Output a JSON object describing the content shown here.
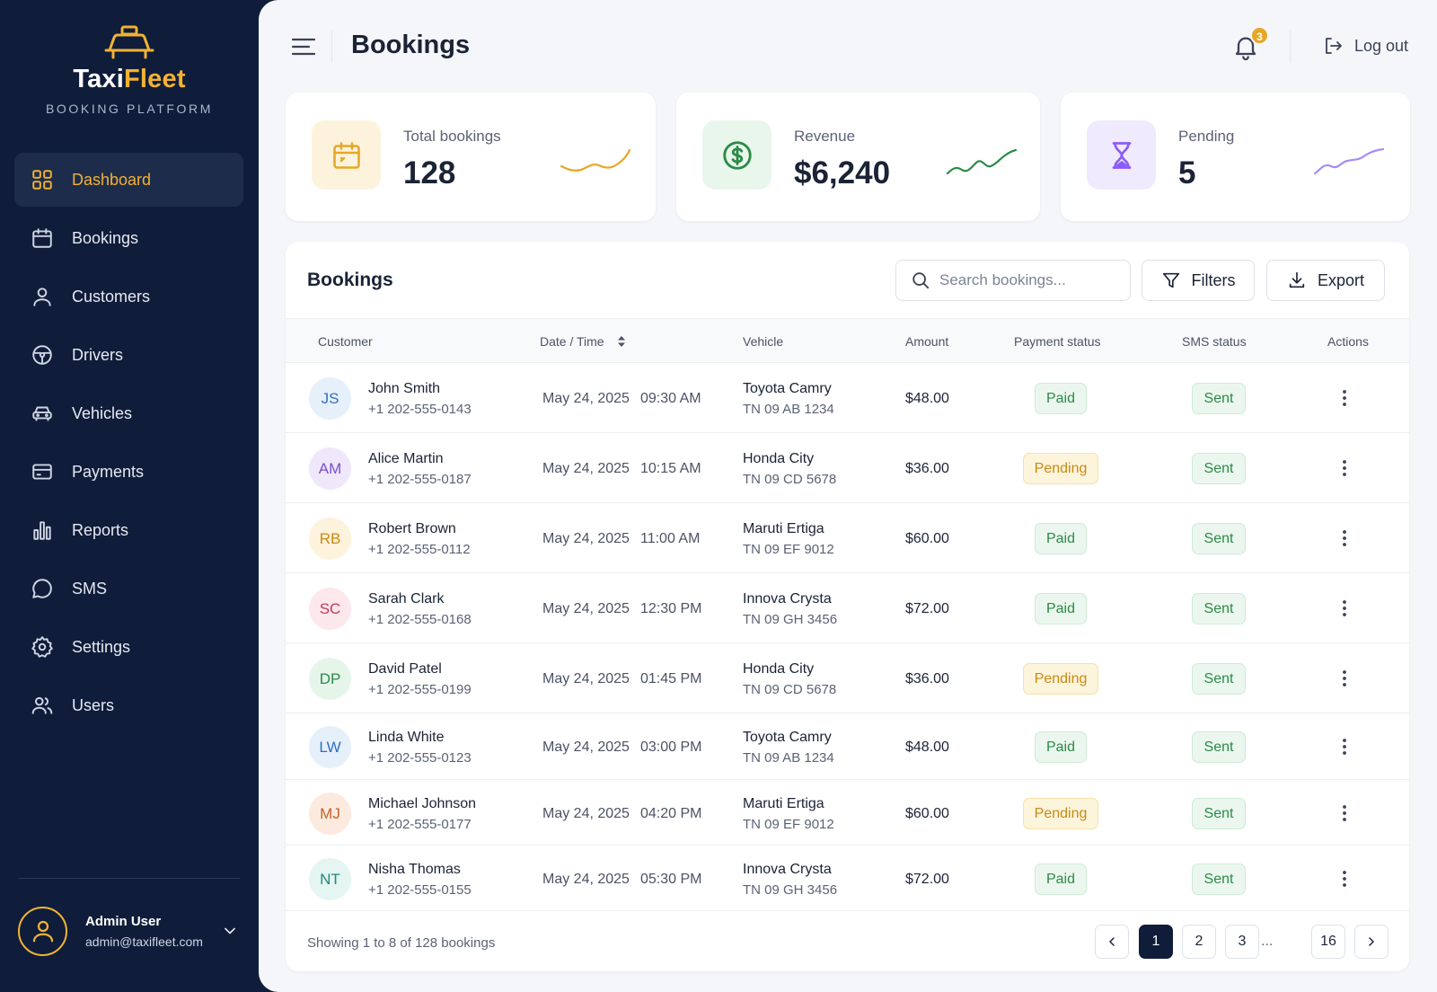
{
  "sidebar": {
    "brand_part1": "Taxi",
    "brand_part2": "Fleet",
    "tagline": "BOOKING PLATFORM",
    "items": [
      {
        "label": "Dashboard",
        "icon": "grid-icon",
        "active": true
      },
      {
        "label": "Bookings",
        "icon": "calendar-icon"
      },
      {
        "label": "Customers",
        "icon": "person-icon"
      },
      {
        "label": "Drivers",
        "icon": "steering-wheel-icon"
      },
      {
        "label": "Vehicles",
        "icon": "car-icon"
      },
      {
        "label": "Payments",
        "icon": "credit-card-icon"
      },
      {
        "label": "Reports",
        "icon": "bar-chart-icon"
      },
      {
        "label": "SMS",
        "icon": "chat-bubble-icon"
      },
      {
        "label": "Settings",
        "icon": "gear-icon"
      },
      {
        "label": "Users",
        "icon": "users-icon"
      }
    ],
    "user": {
      "name": "Admin User",
      "email": "admin@taxifleet.com"
    }
  },
  "header": {
    "title": "Bookings",
    "notifications_count": "3",
    "logout_label": "Log out"
  },
  "stats": [
    {
      "label": "Total bookings",
      "value": "128",
      "color": "#e7a726",
      "bg": "#fdf3dd"
    },
    {
      "label": "Revenue",
      "value": "$6,240",
      "color": "#2b8a47",
      "bg": "#e9f6ec"
    },
    {
      "label": "Pending",
      "value": "5",
      "color": "#8b5cf6",
      "bg": "#efeafd"
    }
  ],
  "table": {
    "title": "Bookings",
    "search_placeholder": "Search bookings...",
    "filters_label": "Filters",
    "export_label": "Export",
    "columns": [
      "Customer",
      "Date / Time",
      "Vehicle",
      "Amount",
      "Payment status",
      "SMS status",
      "Actions"
    ],
    "rows": [
      {
        "initials": "JS",
        "name": "John Smith",
        "phone": "+1 202-555-0143",
        "date": "May 24, 2025",
        "time": "09:30 AM",
        "vehicle": "Toyota Camry",
        "plate": "TN 09 AB 1234",
        "amount": "$48.00",
        "payment": "Paid",
        "sms": "Sent",
        "av_bg": "#e6f0fb",
        "av_fg": "#2f6fc0"
      },
      {
        "initials": "AM",
        "name": "Alice Martin",
        "phone": "+1 202-555-0187",
        "date": "May 24, 2025",
        "time": "10:15 AM",
        "vehicle": "Honda City",
        "plate": "TN 09 CD 5678",
        "amount": "$36.00",
        "payment": "Pending",
        "sms": "Sent",
        "av_bg": "#efe8fb",
        "av_fg": "#7a4fd0"
      },
      {
        "initials": "RB",
        "name": "Robert Brown",
        "phone": "+1 202-555-0112",
        "date": "May 24, 2025",
        "time": "11:00 AM",
        "vehicle": "Maruti Ertiga",
        "plate": "TN 09 EF 9012",
        "amount": "$60.00",
        "payment": "Paid",
        "sms": "Sent",
        "av_bg": "#fdf2dc",
        "av_fg": "#c88a13"
      },
      {
        "initials": "SC",
        "name": "Sarah Clark",
        "phone": "+1 202-555-0168",
        "date": "May 24, 2025",
        "time": "12:30 PM",
        "vehicle": "Innova Crysta",
        "plate": "TN 09 GH 3456",
        "amount": "$72.00",
        "payment": "Paid",
        "sms": "Sent",
        "av_bg": "#fde8ec",
        "av_fg": "#c23a5a"
      },
      {
        "initials": "DP",
        "name": "David Patel",
        "phone": "+1 202-555-0199",
        "date": "May 24, 2025",
        "time": "01:45 PM",
        "vehicle": "Honda City",
        "plate": "TN 09 CD 5678",
        "amount": "$36.00",
        "payment": "Pending",
        "sms": "Sent",
        "av_bg": "#e6f5ea",
        "av_fg": "#2b8a47"
      },
      {
        "initials": "LW",
        "name": "Linda White",
        "phone": "+1 202-555-0123",
        "date": "May 24, 2025",
        "time": "03:00 PM",
        "vehicle": "Toyota Camry",
        "plate": "TN 09 AB 1234",
        "amount": "$48.00",
        "payment": "Paid",
        "sms": "Sent",
        "av_bg": "#e6f0fb",
        "av_fg": "#2f6fc0"
      },
      {
        "initials": "MJ",
        "name": "Michael Johnson",
        "phone": "+1 202-555-0177",
        "date": "May 24, 2025",
        "time": "04:20 PM",
        "vehicle": "Maruti Ertiga",
        "plate": "TN 09 EF 9012",
        "amount": "$60.00",
        "payment": "Pending",
        "sms": "Sent",
        "av_bg": "#fdeadf",
        "av_fg": "#c2622a"
      },
      {
        "initials": "NT",
        "name": "Nisha Thomas",
        "phone": "+1 202-555-0155",
        "date": "May 24, 2025",
        "time": "05:30 PM",
        "vehicle": "Innova Crysta",
        "plate": "TN 09 GH 3456",
        "amount": "$72.00",
        "payment": "Paid",
        "sms": "Sent",
        "av_bg": "#e4f5f2",
        "av_fg": "#1f8a7a"
      }
    ],
    "footer_text": "Showing 1 to 8 of 128 bookings",
    "pages": [
      "1",
      "2",
      "3",
      "...",
      "16"
    ],
    "current_page": "1"
  }
}
